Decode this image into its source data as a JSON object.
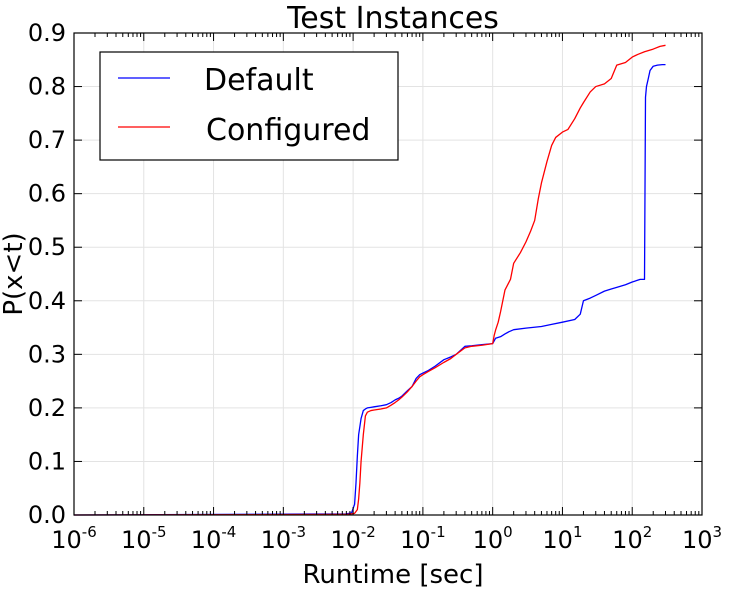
{
  "chart_data": {
    "type": "line",
    "title": "Test Instances",
    "xlabel": "Runtime [sec]",
    "ylabel": "P(x<t)",
    "x_scale": "log",
    "xlim": [
      1e-06,
      1000
    ],
    "ylim": [
      0.0,
      0.9
    ],
    "grid": true,
    "legend_position": "top-left",
    "x_ticks": [
      {
        "value": 1e-06,
        "base": "10",
        "exp": "-6"
      },
      {
        "value": 1e-05,
        "base": "10",
        "exp": "-5"
      },
      {
        "value": 0.0001,
        "base": "10",
        "exp": "-4"
      },
      {
        "value": 0.001,
        "base": "10",
        "exp": "-3"
      },
      {
        "value": 0.01,
        "base": "10",
        "exp": "-2"
      },
      {
        "value": 0.1,
        "base": "10",
        "exp": "-1"
      },
      {
        "value": 1,
        "base": "10",
        "exp": "0"
      },
      {
        "value": 10,
        "base": "10",
        "exp": "1"
      },
      {
        "value": 100,
        "base": "10",
        "exp": "2"
      },
      {
        "value": 1000,
        "base": "10",
        "exp": "3"
      }
    ],
    "y_ticks": [
      "0.0",
      "0.1",
      "0.2",
      "0.3",
      "0.4",
      "0.5",
      "0.6",
      "0.7",
      "0.8",
      "0.9"
    ],
    "series": [
      {
        "name": "Default",
        "color": "#0000ff",
        "x": [
          1e-06,
          0.008,
          0.0095,
          0.0105,
          0.011,
          0.0115,
          0.012,
          0.013,
          0.014,
          0.015,
          0.016,
          0.018,
          0.02,
          0.025,
          0.03,
          0.035,
          0.04,
          0.045,
          0.05,
          0.06,
          0.07,
          0.08,
          0.09,
          0.1,
          0.12,
          0.15,
          0.2,
          0.25,
          0.3,
          0.4,
          0.5,
          0.7,
          1.0,
          1.1,
          1.3,
          1.5,
          1.7,
          2,
          3,
          5,
          7,
          10,
          15,
          18,
          20,
          25,
          30,
          40,
          50,
          60,
          80,
          100,
          130,
          150,
          155,
          160,
          170,
          180,
          200,
          230,
          270,
          300
        ],
        "y": [
          0.0,
          0.002,
          0.004,
          0.02,
          0.06,
          0.11,
          0.15,
          0.18,
          0.195,
          0.198,
          0.2,
          0.201,
          0.202,
          0.204,
          0.206,
          0.21,
          0.215,
          0.218,
          0.222,
          0.232,
          0.24,
          0.255,
          0.262,
          0.265,
          0.27,
          0.278,
          0.29,
          0.295,
          0.3,
          0.315,
          0.316,
          0.318,
          0.32,
          0.33,
          0.333,
          0.338,
          0.342,
          0.346,
          0.349,
          0.352,
          0.356,
          0.36,
          0.365,
          0.375,
          0.4,
          0.405,
          0.41,
          0.418,
          0.422,
          0.425,
          0.43,
          0.435,
          0.44,
          0.44,
          0.78,
          0.8,
          0.815,
          0.83,
          0.838,
          0.84,
          0.841,
          0.841
        ]
      },
      {
        "name": "Configured",
        "color": "#ff0000",
        "x": [
          1e-06,
          0.008,
          0.0105,
          0.0115,
          0.012,
          0.0125,
          0.013,
          0.014,
          0.015,
          0.016,
          0.018,
          0.02,
          0.025,
          0.03,
          0.035,
          0.04,
          0.045,
          0.05,
          0.06,
          0.07,
          0.08,
          0.09,
          0.1,
          0.12,
          0.15,
          0.2,
          0.25,
          0.3,
          0.4,
          0.5,
          0.7,
          1.0,
          1.05,
          1.1,
          1.2,
          1.3,
          1.5,
          1.8,
          2,
          2.5,
          3,
          3.5,
          4,
          4.5,
          5,
          6,
          7,
          8,
          10,
          12,
          15,
          18,
          20,
          25,
          30,
          40,
          50,
          60,
          80,
          100,
          120,
          150,
          200,
          250,
          300
        ],
        "y": [
          0.0,
          0.001,
          0.003,
          0.01,
          0.03,
          0.06,
          0.1,
          0.15,
          0.185,
          0.192,
          0.195,
          0.196,
          0.198,
          0.2,
          0.205,
          0.21,
          0.215,
          0.22,
          0.23,
          0.24,
          0.25,
          0.258,
          0.262,
          0.268,
          0.275,
          0.285,
          0.292,
          0.3,
          0.312,
          0.315,
          0.317,
          0.32,
          0.335,
          0.345,
          0.36,
          0.38,
          0.42,
          0.44,
          0.47,
          0.49,
          0.51,
          0.53,
          0.55,
          0.59,
          0.62,
          0.66,
          0.69,
          0.705,
          0.715,
          0.72,
          0.74,
          0.76,
          0.77,
          0.79,
          0.8,
          0.805,
          0.815,
          0.84,
          0.845,
          0.855,
          0.86,
          0.865,
          0.87,
          0.875,
          0.877
        ]
      }
    ]
  }
}
